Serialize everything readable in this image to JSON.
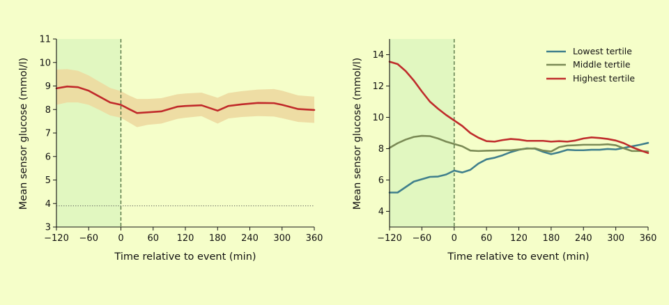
{
  "background_color": "#f5fec9",
  "chart_data": [
    {
      "type": "line",
      "xlabel": "Time relative to event (min)",
      "ylabel": "Mean sensor glucose (mmol/l)",
      "xlim": [
        -120,
        360
      ],
      "ylim": [
        3,
        11
      ],
      "xticks": [
        -120,
        -60,
        0,
        60,
        120,
        180,
        240,
        300,
        360
      ],
      "xtick_labels": [
        "−120",
        "−60",
        "0",
        "60",
        "120",
        "180",
        "240",
        "300",
        "360"
      ],
      "yticks": [
        3,
        4,
        5,
        6,
        7,
        8,
        9,
        10,
        11
      ],
      "ytick_labels": [
        "3",
        "4",
        "5",
        "6",
        "7",
        "8",
        "9",
        "10",
        "11"
      ],
      "shaded_region": {
        "x_from": -120,
        "x_to": 0,
        "color": "#e1f7c0"
      },
      "event_line": {
        "x": 0,
        "style": "dashed",
        "color": "#4a6a3a"
      },
      "reference_line": {
        "y": 3.9,
        "style": "dotted",
        "color": "#555555"
      },
      "grid": false,
      "series": [
        {
          "color": "#c0292a",
          "band_color": "#edd9a0",
          "x": [
            -120,
            -100,
            -80,
            -60,
            -40,
            -20,
            0,
            15,
            30,
            50,
            75,
            105,
            120,
            150,
            180,
            200,
            225,
            255,
            285,
            300,
            330,
            360
          ],
          "y": [
            8.9,
            8.98,
            8.95,
            8.8,
            8.55,
            8.3,
            8.2,
            8.02,
            7.85,
            7.88,
            7.92,
            8.12,
            8.15,
            8.18,
            7.95,
            8.15,
            8.22,
            8.28,
            8.27,
            8.2,
            8.02,
            7.98
          ],
          "lower": [
            8.2,
            8.3,
            8.3,
            8.2,
            7.98,
            7.75,
            7.65,
            7.45,
            7.25,
            7.35,
            7.4,
            7.6,
            7.65,
            7.72,
            7.4,
            7.62,
            7.68,
            7.72,
            7.7,
            7.63,
            7.47,
            7.43
          ],
          "upper": [
            9.7,
            9.72,
            9.65,
            9.45,
            9.18,
            8.92,
            8.78,
            8.6,
            8.45,
            8.45,
            8.48,
            8.65,
            8.68,
            8.72,
            8.5,
            8.7,
            8.78,
            8.85,
            8.87,
            8.8,
            8.6,
            8.55
          ]
        }
      ]
    },
    {
      "type": "line",
      "xlabel": "Time relative to event (min)",
      "ylabel": "Mean sensor glucose (mmol/l)",
      "xlim": [
        -120,
        360
      ],
      "ylim": [
        3,
        15
      ],
      "xticks": [
        -120,
        -60,
        0,
        60,
        120,
        180,
        240,
        300,
        360
      ],
      "xtick_labels": [
        "−120",
        "−60",
        "0",
        "60",
        "120",
        "180",
        "240",
        "300",
        "360"
      ],
      "yticks": [
        4,
        6,
        8,
        10,
        12,
        14
      ],
      "ytick_labels": [
        "4",
        "6",
        "8",
        "10",
        "12",
        "14"
      ],
      "shaded_region": {
        "x_from": -120,
        "x_to": 0,
        "color": "#e1f7c0"
      },
      "event_line": {
        "x": 0,
        "style": "dashed",
        "color": "#4a6a3a"
      },
      "grid": false,
      "legend_position": "top-right",
      "series": [
        {
          "name": "Lowest tertile",
          "color": "#3f7f8c",
          "x": [
            -120,
            -105,
            -90,
            -75,
            -60,
            -45,
            -30,
            -15,
            0,
            15,
            30,
            45,
            60,
            75,
            90,
            105,
            120,
            135,
            150,
            165,
            180,
            195,
            210,
            225,
            240,
            255,
            270,
            285,
            300,
            315,
            330,
            345,
            360
          ],
          "y": [
            5.2,
            5.2,
            5.55,
            5.9,
            6.05,
            6.2,
            6.22,
            6.35,
            6.6,
            6.48,
            6.65,
            7.05,
            7.32,
            7.42,
            7.58,
            7.78,
            7.93,
            8.02,
            8.0,
            7.8,
            7.65,
            7.77,
            7.93,
            7.9,
            7.9,
            7.93,
            7.93,
            7.98,
            7.95,
            8.05,
            8.15,
            8.25,
            8.37
          ]
        },
        {
          "name": "Middle tertile",
          "color": "#7a8a55",
          "x": [
            -120,
            -105,
            -90,
            -75,
            -60,
            -45,
            -30,
            -15,
            0,
            15,
            30,
            45,
            60,
            75,
            90,
            105,
            120,
            135,
            150,
            165,
            180,
            195,
            210,
            225,
            240,
            255,
            270,
            285,
            300,
            315,
            330,
            345,
            360
          ],
          "y": [
            8.05,
            8.35,
            8.58,
            8.75,
            8.82,
            8.8,
            8.65,
            8.45,
            8.3,
            8.15,
            7.88,
            7.85,
            7.87,
            7.88,
            7.9,
            7.9,
            7.95,
            8.0,
            8.02,
            7.88,
            7.82,
            8.1,
            8.2,
            8.22,
            8.25,
            8.25,
            8.25,
            8.28,
            8.22,
            8.02,
            7.85,
            7.85,
            7.82
          ]
        },
        {
          "name": "Highest tertile",
          "color": "#bf2b2b",
          "x": [
            -120,
            -105,
            -90,
            -75,
            -60,
            -45,
            -30,
            -15,
            0,
            15,
            30,
            45,
            60,
            75,
            90,
            105,
            120,
            135,
            150,
            165,
            180,
            195,
            210,
            225,
            240,
            255,
            270,
            285,
            300,
            315,
            330,
            345,
            360
          ],
          "y": [
            13.55,
            13.4,
            12.95,
            12.35,
            11.65,
            11.0,
            10.55,
            10.15,
            9.8,
            9.45,
            9.0,
            8.7,
            8.48,
            8.45,
            8.55,
            8.62,
            8.58,
            8.5,
            8.5,
            8.5,
            8.45,
            8.48,
            8.45,
            8.52,
            8.65,
            8.72,
            8.68,
            8.62,
            8.52,
            8.35,
            8.1,
            7.9,
            7.72
          ]
        }
      ]
    }
  ]
}
